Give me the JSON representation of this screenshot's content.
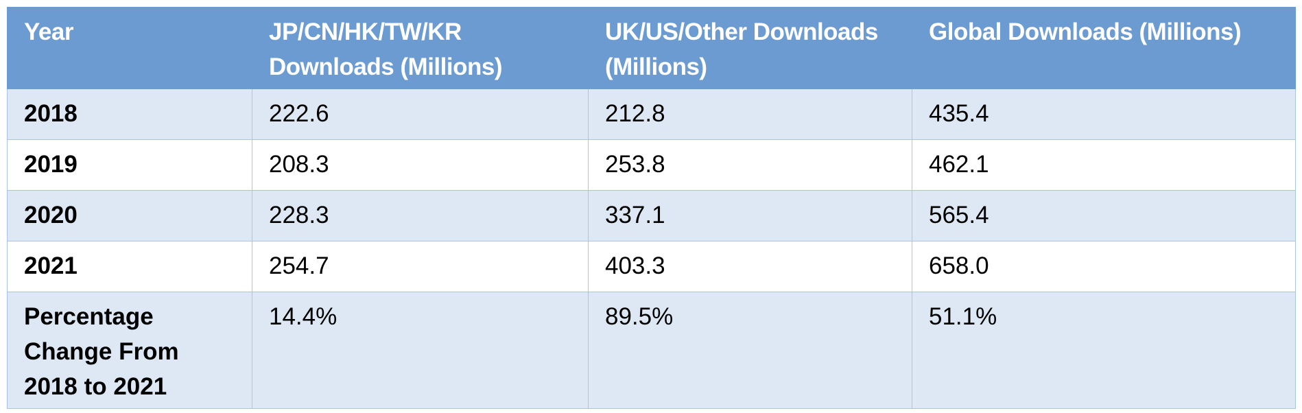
{
  "table": {
    "header": [
      "Year",
      "JP/CN/HK/TW/KR Downloads (Millions)",
      "UK/US/Other Downloads (Millions)",
      "Global Downloads (Millions)"
    ],
    "rows": [
      [
        "2018",
        "222.6",
        "212.8",
        "435.4"
      ],
      [
        "2019",
        "208.3",
        "253.8",
        "462.1"
      ],
      [
        "2020",
        "228.3",
        "337.1",
        "565.4"
      ],
      [
        "2021",
        "254.7",
        "403.3",
        "658.0"
      ],
      [
        "Percentage Change From 2018 to 2021",
        "14.4%",
        "89.5%",
        "51.1%"
      ]
    ]
  }
}
